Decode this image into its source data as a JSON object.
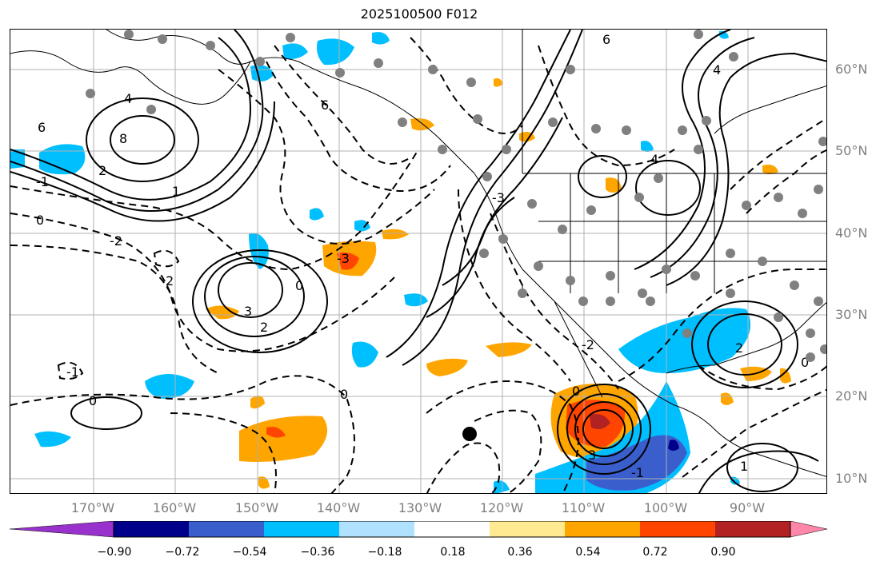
{
  "title": "2025100500 F012",
  "lat_labels": [
    "60°N",
    "50°N",
    "40°N",
    "30°N",
    "20°N",
    "10°N"
  ],
  "lon_labels": [
    "170°W",
    "160°W",
    "150°W",
    "140°W",
    "130°W",
    "120°W",
    "110°W",
    "100°W",
    "90°W"
  ],
  "colorbar": {
    "tick_labels": [
      "−0.90",
      "−0.72",
      "−0.54",
      "−0.36",
      "−0.18",
      "0.18",
      "0.36",
      "0.54",
      "0.72",
      "0.90"
    ],
    "colors": [
      "#9932cc",
      "#00008b",
      "#3a5fcd",
      "#00bfff",
      "#b0e2ff",
      "#ffffff",
      "#ffe991",
      "#ffa500",
      "#ff4500",
      "#b22222",
      "#ff88aa"
    ]
  },
  "contour_labels": [
    "6",
    "8",
    "4",
    "2",
    "1",
    "0",
    "-1",
    "-2",
    "-3",
    "3",
    "6",
    "0",
    "4",
    "6",
    "4",
    "2",
    "0",
    "2",
    "3",
    "0",
    "-1",
    "0",
    "-3",
    "2",
    "-1",
    "-2",
    "0",
    "1"
  ],
  "marker": "black-dot"
}
